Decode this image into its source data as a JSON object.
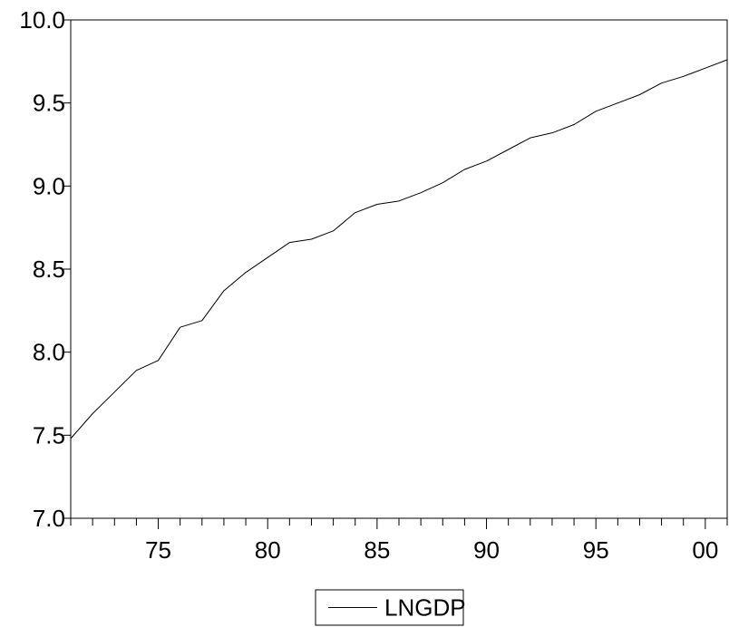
{
  "chart_data": {
    "type": "line",
    "title": "",
    "xlabel": "",
    "ylabel": "",
    "xlim": [
      1971,
      2001
    ],
    "ylim": [
      7.0,
      10.0
    ],
    "y_ticks": [
      7.0,
      7.5,
      8.0,
      8.5,
      9.0,
      9.5,
      10.0
    ],
    "y_tick_labels": [
      "7.0",
      "7.5",
      "8.0",
      "8.5",
      "9.0",
      "9.5",
      "10.0"
    ],
    "x_major_ticks": [
      1975,
      1980,
      1985,
      1990,
      1995,
      2000
    ],
    "x_tick_labels": [
      "75",
      "80",
      "85",
      "90",
      "95",
      "00"
    ],
    "grid": false,
    "legend_position": "bottom-center",
    "line_color": "#000000",
    "series": [
      {
        "name": "LNGDP",
        "x": [
          1971,
          1972,
          1973,
          1974,
          1975,
          1976,
          1977,
          1978,
          1979,
          1980,
          1981,
          1982,
          1983,
          1984,
          1985,
          1986,
          1987,
          1988,
          1989,
          1990,
          1991,
          1992,
          1993,
          1994,
          1995,
          1996,
          1997,
          1998,
          1999,
          2000,
          2001
        ],
        "values": [
          7.48,
          7.63,
          7.76,
          7.89,
          7.95,
          8.15,
          8.19,
          8.37,
          8.48,
          8.57,
          8.66,
          8.68,
          8.73,
          8.84,
          8.89,
          8.91,
          8.96,
          9.02,
          9.1,
          9.15,
          9.22,
          9.29,
          9.32,
          9.37,
          9.45,
          9.5,
          9.55,
          9.62,
          9.66,
          9.71,
          9.76
        ]
      }
    ]
  }
}
